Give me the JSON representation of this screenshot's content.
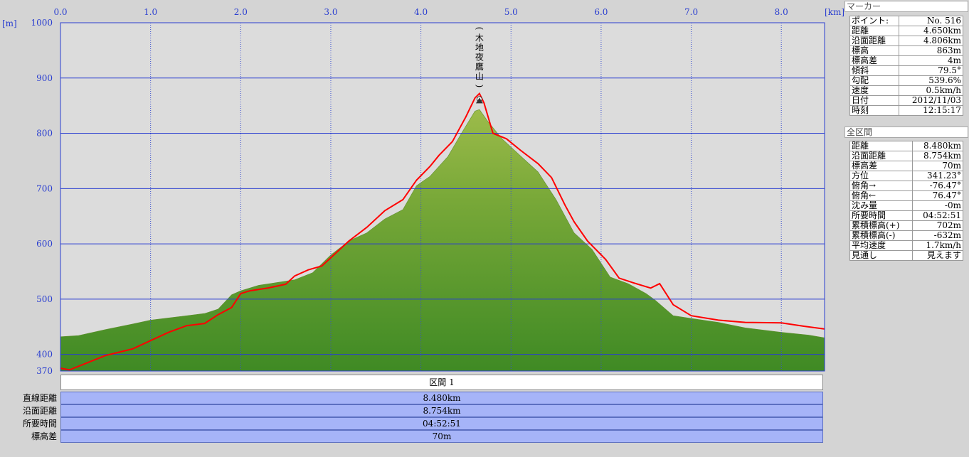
{
  "chart_data": {
    "type": "area",
    "x_unit": "[km]",
    "y_unit": "[m]",
    "xlim": [
      0,
      8.48
    ],
    "ylim": [
      370,
      1000
    ],
    "x_ticks": [
      "0.0",
      "1.0",
      "2.0",
      "3.0",
      "4.0",
      "5.0",
      "6.0",
      "7.0",
      "8.0"
    ],
    "y_ticks": [
      "1000",
      "900",
      "800",
      "700",
      "600",
      "500",
      "400",
      "370"
    ],
    "grid": true,
    "peak_label": "(木地夜鷹山)",
    "series": [
      {
        "name": "",
        "color": "#ff0000",
        "x": [
          0,
          0.1,
          0.3,
          0.5,
          0.8,
          1.0,
          1.2,
          1.4,
          1.6,
          1.75,
          1.9,
          2.0,
          2.1,
          2.3,
          2.5,
          2.6,
          2.75,
          2.9,
          3.0,
          3.2,
          3.4,
          3.6,
          3.8,
          3.95,
          4.1,
          4.2,
          4.35,
          4.5,
          4.6,
          4.65,
          4.7,
          4.8,
          4.95,
          5.1,
          5.3,
          5.45,
          5.6,
          5.7,
          5.85,
          6.05,
          6.2,
          6.35,
          6.55,
          6.65,
          6.8,
          7.0,
          7.3,
          7.6,
          8.0,
          8.25,
          8.48
        ],
        "y": [
          375,
          372,
          385,
          398,
          410,
          425,
          440,
          452,
          456,
          472,
          485,
          510,
          515,
          520,
          527,
          542,
          553,
          560,
          575,
          605,
          630,
          660,
          680,
          715,
          740,
          760,
          785,
          830,
          864,
          872,
          855,
          800,
          790,
          770,
          745,
          720,
          670,
          640,
          605,
          572,
          538,
          530,
          520,
          528,
          490,
          470,
          462,
          458,
          457,
          451,
          446
        ]
      },
      {
        "name": "",
        "color": "#5a9a2a",
        "x": [
          0,
          0.2,
          0.5,
          0.8,
          1.0,
          1.3,
          1.6,
          1.75,
          1.9,
          2.0,
          2.2,
          2.4,
          2.6,
          2.8,
          3.0,
          3.2,
          3.4,
          3.6,
          3.8,
          3.95,
          4.1,
          4.3,
          4.45,
          4.6,
          4.65,
          4.75,
          4.9,
          5.1,
          5.3,
          5.5,
          5.7,
          5.9,
          6.1,
          6.3,
          6.5,
          6.6,
          6.8,
          7.0,
          7.3,
          7.6,
          8.0,
          8.3,
          8.48
        ],
        "y": [
          432,
          434,
          445,
          455,
          462,
          468,
          474,
          482,
          508,
          515,
          525,
          530,
          535,
          548,
          580,
          605,
          620,
          645,
          662,
          705,
          722,
          758,
          800,
          840,
          843,
          820,
          790,
          760,
          730,
          680,
          620,
          590,
          540,
          528,
          510,
          498,
          470,
          465,
          458,
          448,
          440,
          435,
          430
        ]
      }
    ]
  },
  "summary": {
    "header": "区間 1",
    "rows": [
      {
        "label": "直線距離",
        "value": "8.480km"
      },
      {
        "label": "沿面距離",
        "value": "8.754km"
      },
      {
        "label": "所要時間",
        "value": "04:52:51"
      },
      {
        "label": "標高差",
        "value": "70m"
      }
    ]
  },
  "marker_panel": {
    "title": "マーカー",
    "rows": [
      {
        "label": "ポイント:",
        "value": "No. 516"
      },
      {
        "label": "距離",
        "value": "4.650km"
      },
      {
        "label": "沿面距離",
        "value": "4.806km"
      },
      {
        "label": "標高",
        "value": "863m"
      },
      {
        "label": "標高差",
        "value": "4m"
      },
      {
        "label": "傾斜",
        "value": "79.5°"
      },
      {
        "label": "勾配",
        "value": "539.6%"
      },
      {
        "label": "速度",
        "value": "0.5km/h"
      },
      {
        "label": "日付",
        "value": "2012/11/03"
      },
      {
        "label": "時刻",
        "value": "12:15:17"
      }
    ]
  },
  "section_panel": {
    "title": "全区間",
    "rows": [
      {
        "label": "距離",
        "value": "8.480km"
      },
      {
        "label": "沿面距離",
        "value": "8.754km"
      },
      {
        "label": "標高差",
        "value": "70m"
      },
      {
        "label": "方位",
        "value": "341.23°"
      },
      {
        "label": "俯角→",
        "value": "-76.47°"
      },
      {
        "label": "俯角←",
        "value": "76.47°"
      },
      {
        "label": "沈み量",
        "value": "-0m"
      },
      {
        "label": "所要時間",
        "value": "04:52:51"
      },
      {
        "label": "累積標高(+)",
        "value": "702m"
      },
      {
        "label": "累積標高(-)",
        "value": "-632m"
      },
      {
        "label": "平均速度",
        "value": "1.7km/h"
      },
      {
        "label": "見通し",
        "value": "見えます"
      }
    ]
  }
}
